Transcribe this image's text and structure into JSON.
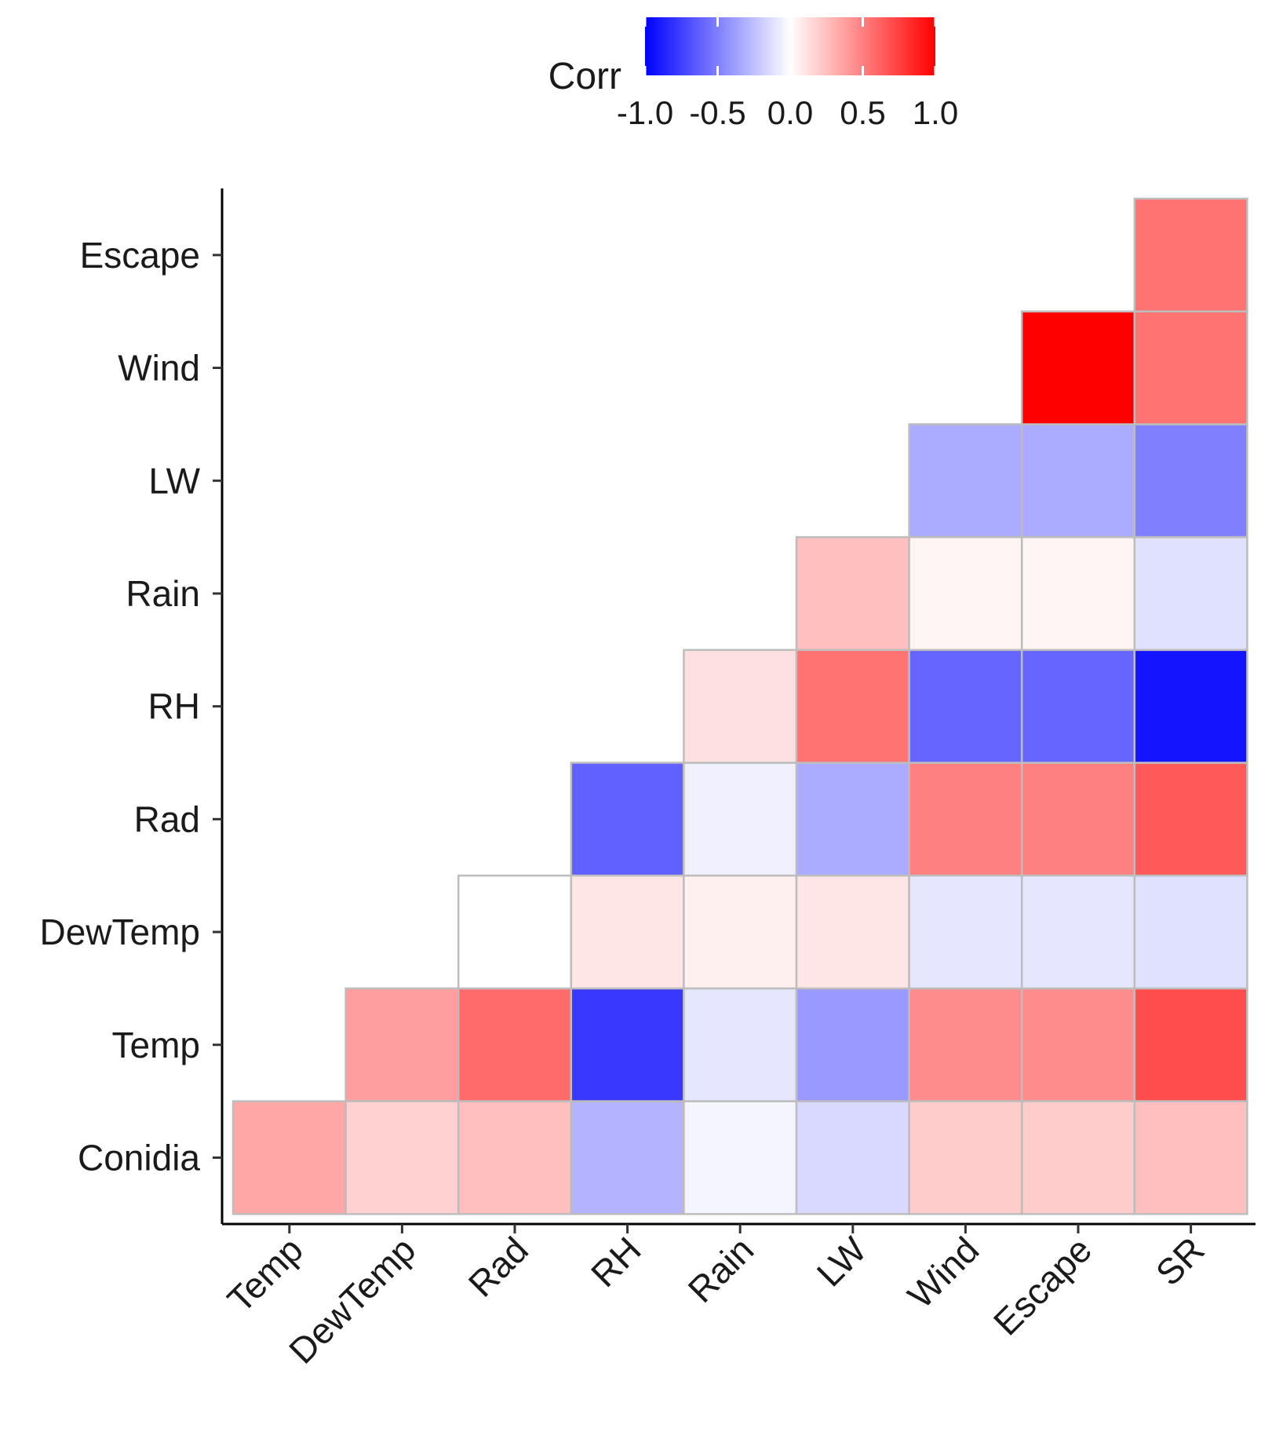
{
  "chart_data": {
    "type": "heatmap",
    "title": "",
    "xlabel": "",
    "ylabel": "",
    "x_categories": [
      "Temp",
      "DewTemp",
      "Rad",
      "RH",
      "Rain",
      "LW",
      "Wind",
      "Escape",
      "SR"
    ],
    "y_categories": [
      "Conidia",
      "Temp",
      "DewTemp",
      "Rad",
      "RH",
      "Rain",
      "LW",
      "Wind",
      "Escape"
    ],
    "cells": [
      {
        "y": "Conidia",
        "x": "Temp",
        "value": 0.35
      },
      {
        "y": "Conidia",
        "x": "DewTemp",
        "value": 0.18
      },
      {
        "y": "Conidia",
        "x": "Rad",
        "value": 0.25
      },
      {
        "y": "Conidia",
        "x": "RH",
        "value": -0.3
      },
      {
        "y": "Conidia",
        "x": "Rain",
        "value": -0.04
      },
      {
        "y": "Conidia",
        "x": "LW",
        "value": -0.15
      },
      {
        "y": "Conidia",
        "x": "Wind",
        "value": 0.2
      },
      {
        "y": "Conidia",
        "x": "Escape",
        "value": 0.2
      },
      {
        "y": "Conidia",
        "x": "SR",
        "value": 0.25
      },
      {
        "y": "Temp",
        "x": "DewTemp",
        "value": 0.38
      },
      {
        "y": "Temp",
        "x": "Rad",
        "value": 0.58
      },
      {
        "y": "Temp",
        "x": "RH",
        "value": -0.78
      },
      {
        "y": "Temp",
        "x": "Rain",
        "value": -0.1
      },
      {
        "y": "Temp",
        "x": "LW",
        "value": -0.4
      },
      {
        "y": "Temp",
        "x": "Wind",
        "value": 0.45
      },
      {
        "y": "Temp",
        "x": "Escape",
        "value": 0.45
      },
      {
        "y": "Temp",
        "x": "SR",
        "value": 0.7
      },
      {
        "y": "DewTemp",
        "x": "Rad",
        "value": 0.0
      },
      {
        "y": "DewTemp",
        "x": "RH",
        "value": 0.1
      },
      {
        "y": "DewTemp",
        "x": "Rain",
        "value": 0.06
      },
      {
        "y": "DewTemp",
        "x": "LW",
        "value": 0.1
      },
      {
        "y": "DewTemp",
        "x": "Wind",
        "value": -0.1
      },
      {
        "y": "DewTemp",
        "x": "Escape",
        "value": -0.1
      },
      {
        "y": "DewTemp",
        "x": "SR",
        "value": -0.12
      },
      {
        "y": "Rad",
        "x": "RH",
        "value": -0.62
      },
      {
        "y": "Rad",
        "x": "Rain",
        "value": -0.06
      },
      {
        "y": "Rad",
        "x": "LW",
        "value": -0.33
      },
      {
        "y": "Rad",
        "x": "Wind",
        "value": 0.5
      },
      {
        "y": "Rad",
        "x": "Escape",
        "value": 0.5
      },
      {
        "y": "Rad",
        "x": "SR",
        "value": 0.65
      },
      {
        "y": "RH",
        "x": "Rain",
        "value": 0.12
      },
      {
        "y": "RH",
        "x": "LW",
        "value": 0.55
      },
      {
        "y": "RH",
        "x": "Wind",
        "value": -0.6
      },
      {
        "y": "RH",
        "x": "Escape",
        "value": -0.6
      },
      {
        "y": "RH",
        "x": "SR",
        "value": -0.92
      },
      {
        "y": "Rain",
        "x": "LW",
        "value": 0.25
      },
      {
        "y": "Rain",
        "x": "Wind",
        "value": 0.04
      },
      {
        "y": "Rain",
        "x": "Escape",
        "value": 0.04
      },
      {
        "y": "Rain",
        "x": "SR",
        "value": -0.12
      },
      {
        "y": "LW",
        "x": "Wind",
        "value": -0.33
      },
      {
        "y": "LW",
        "x": "Escape",
        "value": -0.33
      },
      {
        "y": "LW",
        "x": "SR",
        "value": -0.5
      },
      {
        "y": "Wind",
        "x": "Escape",
        "value": 1.0
      },
      {
        "y": "Wind",
        "x": "SR",
        "value": 0.55
      },
      {
        "y": "Escape",
        "x": "SR",
        "value": 0.55
      }
    ],
    "legend": {
      "title": "Corr",
      "position": "top",
      "range": [
        -1.0,
        1.0
      ],
      "ticks": [
        -1.0,
        -0.5,
        0.0,
        0.5,
        1.0
      ],
      "tick_labels": [
        "-1.0",
        "-0.5",
        "0.0",
        "0.5",
        "1.0"
      ],
      "low_color": "#0000ff",
      "mid_color": "#ffffff",
      "high_color": "#ff0000"
    },
    "cell_border_color": "#bdbdbd"
  }
}
